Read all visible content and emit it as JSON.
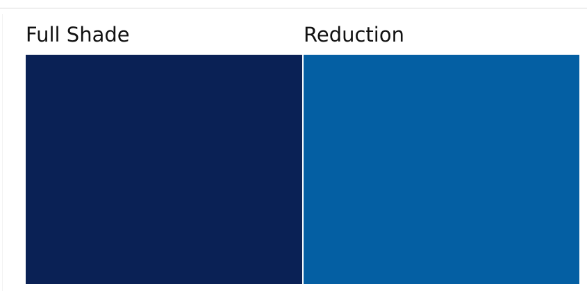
{
  "swatches": [
    {
      "label": "Full Shade",
      "color": "#0a2155"
    },
    {
      "label": "Reduction",
      "color": "#045fa3"
    }
  ]
}
